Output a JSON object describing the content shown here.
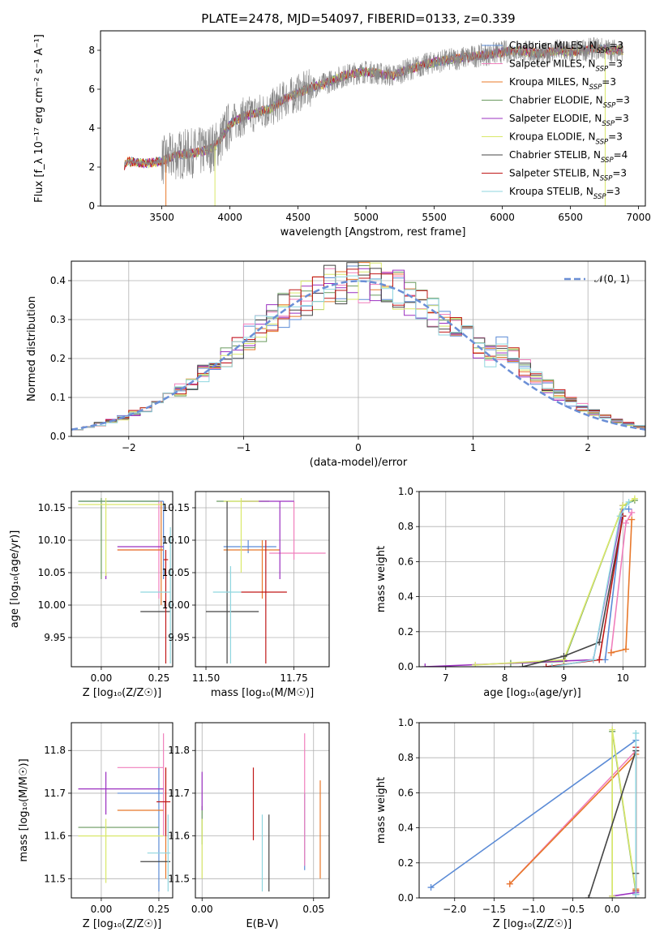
{
  "title": "PLATE=2478, MJD=54097, FIBERID=0133, z=0.339",
  "colors": {
    "chabrier_miles": "#5b8bd6",
    "salpeter_miles": "#f07fbc",
    "kroupa_miles": "#e8782a",
    "chabrier_elodie": "#6a9a5f",
    "salpeter_elodie": "#9b30c0",
    "kroupa_elodie": "#d9e86a",
    "chabrier_stelib": "#444444",
    "salpeter_stelib": "#c01818",
    "kroupa_stelib": "#8fd6df",
    "normal": "#6b8fd6",
    "spectrum": "#888888"
  },
  "chart_data": [
    {
      "id": "spectrum",
      "type": "line",
      "title": "PLATE=2478, MJD=54097, FIBERID=0133, z=0.339",
      "xlabel": "wavelength [Angstrom, rest frame]",
      "ylabel": "Flux [f_λ 10⁻¹⁷ erg cm⁻² s⁻¹ A⁻¹]",
      "xlim": [
        3050,
        7050
      ],
      "ylim": [
        0,
        9
      ],
      "xticks": [
        3500,
        4000,
        4500,
        5000,
        5500,
        6000,
        6500,
        7000
      ],
      "yticks": [
        0,
        2,
        4,
        6,
        8
      ],
      "grid": false,
      "legend_position": "top-right",
      "legend": [
        {
          "base": "Chabrier MILES, N",
          "sub": "SSP",
          "tail": "=3",
          "color_key": "chabrier_miles"
        },
        {
          "base": "Salpeter MILES, N",
          "sub": "SSP",
          "tail": "=3",
          "color_key": "salpeter_miles"
        },
        {
          "base": "Kroupa MILES, N",
          "sub": "SSP",
          "tail": "=3",
          "color_key": "kroupa_miles"
        },
        {
          "base": "Chabrier ELODIE, N",
          "sub": "SSP",
          "tail": "=3",
          "color_key": "chabrier_elodie"
        },
        {
          "base": "Salpeter ELODIE, N",
          "sub": "SSP",
          "tail": "=3",
          "color_key": "salpeter_elodie"
        },
        {
          "base": "Kroupa ELODIE, N",
          "sub": "SSP",
          "tail": "=3",
          "color_key": "kroupa_elodie"
        },
        {
          "base": "Chabrier STELIB, N",
          "sub": "SSP",
          "tail": "=4",
          "color_key": "chabrier_stelib"
        },
        {
          "base": "Salpeter STELIB, N",
          "sub": "SSP",
          "tail": "=3",
          "color_key": "salpeter_stelib"
        },
        {
          "base": "Kroupa STELIB, N",
          "sub": "SSP",
          "tail": "=3",
          "color_key": "kroupa_stelib"
        }
      ],
      "continuum": [
        [
          3220,
          0
        ],
        [
          3225,
          2.1
        ],
        [
          3240,
          2.3
        ],
        [
          3300,
          2.25
        ],
        [
          3400,
          2.2
        ],
        [
          3500,
          2.3
        ],
        [
          3600,
          2.6
        ],
        [
          3700,
          2.7
        ],
        [
          3800,
          2.8
        ],
        [
          3900,
          3.1
        ],
        [
          4000,
          4.2
        ],
        [
          4100,
          4.6
        ],
        [
          4200,
          4.8
        ],
        [
          4300,
          5.0
        ],
        [
          4400,
          5.5
        ],
        [
          4500,
          5.8
        ],
        [
          4600,
          6.1
        ],
        [
          4700,
          6.3
        ],
        [
          4800,
          6.6
        ],
        [
          4900,
          6.8
        ],
        [
          5000,
          6.9
        ],
        [
          5100,
          6.8
        ],
        [
          5200,
          6.7
        ],
        [
          5300,
          7.0
        ],
        [
          5400,
          7.2
        ],
        [
          5500,
          7.4
        ],
        [
          5600,
          7.5
        ],
        [
          5700,
          7.6
        ],
        [
          5800,
          7.7
        ],
        [
          5900,
          7.8
        ],
        [
          6000,
          7.9
        ],
        [
          6100,
          8.0
        ],
        [
          6200,
          7.9
        ],
        [
          6300,
          7.8
        ],
        [
          6400,
          8.0
        ],
        [
          6500,
          7.9
        ],
        [
          6600,
          8.0
        ],
        [
          6700,
          8.1
        ],
        [
          6800,
          8.0
        ],
        [
          6890,
          8.0
        ]
      ]
    },
    {
      "id": "residuals",
      "type": "line",
      "xlabel": "(data-model)/error",
      "ylabel": "Normed distribution",
      "xlim": [
        -2.5,
        2.5
      ],
      "ylim": [
        0,
        0.45
      ],
      "xticks": [
        -2,
        -1,
        0,
        1,
        2
      ],
      "yticks": [
        0.0,
        0.1,
        0.2,
        0.3,
        0.4
      ],
      "grid": true,
      "legend_position": "top-right",
      "legend": [
        {
          "label": "𝒩(0, 1)",
          "color_key": "normal",
          "dashed": true
        }
      ]
    },
    {
      "id": "age_vs_Z",
      "type": "scatter",
      "xlabel": "Z [log₁₀(Z/Z☉)]",
      "ylabel": "age  [log₁₀(age/yr)]",
      "xlim": [
        -0.13,
        0.31
      ],
      "ylim": [
        9.905,
        10.175
      ],
      "xticks": [
        0.0,
        0.25
      ],
      "yticks": [
        9.95,
        10.0,
        10.05,
        10.1,
        10.15
      ],
      "grid": true,
      "points": [
        {
          "c": "chabrier_miles",
          "x": 0.27,
          "xe": [
            -0.1,
            0.27
          ],
          "y": 10.16,
          "ye": [
            10.04,
            10.16
          ]
        },
        {
          "c": "salpeter_miles",
          "x": 0.25,
          "xe": [
            0.07,
            0.27
          ],
          "y": 10.085,
          "ye": [
            10.01,
            10.16
          ]
        },
        {
          "c": "kroupa_miles",
          "x": 0.26,
          "xe": [
            0.07,
            0.27
          ],
          "y": 10.085,
          "ye": [
            10.0,
            10.16
          ]
        },
        {
          "c": "chabrier_elodie",
          "x": 0.0,
          "xe": [
            -0.1,
            0.25
          ],
          "y": 10.16,
          "ye": [
            10.04,
            10.165
          ]
        },
        {
          "c": "salpeter_elodie",
          "x": 0.02,
          "xe": [
            0.07,
            0.27
          ],
          "y": 10.09,
          "ye": [
            10.04,
            10.05
          ]
        },
        {
          "c": "kroupa_elodie",
          "x": 0.02,
          "xe": [
            -0.1,
            0.27
          ],
          "y": 10.155,
          "ye": [
            10.045,
            10.165
          ]
        },
        {
          "c": "chabrier_stelib",
          "x": 0.23,
          "xe": [
            0.17,
            0.3
          ],
          "y": 9.99,
          "ye": [
            9.99,
            9.99
          ]
        },
        {
          "c": "salpeter_stelib",
          "x": 0.28,
          "xe": [
            0.27,
            0.29
          ],
          "y": 10.07,
          "ye": [
            9.91,
            10.085
          ]
        },
        {
          "c": "kroupa_stelib",
          "x": 0.3,
          "xe": [
            0.17,
            0.3
          ],
          "y": 10.02,
          "ye": [
            9.91,
            10.12
          ]
        }
      ]
    },
    {
      "id": "age_vs_mass",
      "type": "scatter",
      "xlabel": "mass [log₁₀(M/M☉)]",
      "ylim": [
        9.905,
        10.175
      ],
      "xlim": [
        11.47,
        11.85
      ],
      "xticks": [
        11.5,
        11.75
      ],
      "yticks": [
        9.95,
        10.0,
        10.05,
        10.1,
        10.15
      ],
      "grid": true,
      "points": [
        {
          "c": "chabrier_miles",
          "x": 11.62,
          "xe": [
            11.55,
            11.7
          ],
          "y": 10.09,
          "ye": [
            10.08,
            10.1
          ]
        },
        {
          "c": "salpeter_miles",
          "x": 11.75,
          "xe": [
            11.68,
            11.84
          ],
          "y": 10.08,
          "ye": [
            10.07,
            10.16
          ]
        },
        {
          "c": "kroupa_miles",
          "x": 11.66,
          "xe": [
            11.55,
            11.71
          ],
          "y": 10.085,
          "ye": [
            10.01,
            10.1
          ]
        },
        {
          "c": "chabrier_elodie",
          "x": 11.59,
          "xe": [
            11.53,
            11.68
          ],
          "y": 10.16,
          "ye": [
            10.16,
            10.16
          ]
        },
        {
          "c": "salpeter_elodie",
          "x": 11.71,
          "xe": [
            11.6,
            11.75
          ],
          "y": 10.16,
          "ye": [
            10.04,
            10.16
          ]
        },
        {
          "c": "kroupa_elodie",
          "x": 11.6,
          "xe": [
            11.55,
            11.65
          ],
          "y": 10.16,
          "ye": [
            10.05,
            10.165
          ]
        },
        {
          "c": "chabrier_stelib",
          "x": 11.56,
          "xe": [
            11.5,
            11.65
          ],
          "y": 9.99,
          "ye": [
            9.91,
            10.16
          ]
        },
        {
          "c": "salpeter_stelib",
          "x": 11.67,
          "xe": [
            11.6,
            11.73
          ],
          "y": 10.02,
          "ye": [
            9.91,
            10.1
          ]
        },
        {
          "c": "kroupa_stelib",
          "x": 11.57,
          "xe": [
            11.52,
            11.6
          ],
          "y": 10.02,
          "ye": [
            9.91,
            10.06
          ]
        }
      ]
    },
    {
      "id": "mass_weight_vs_age",
      "type": "line",
      "xlabel": "age  [log₁₀(age/yr)]",
      "ylabel": "mass weight",
      "xlim": [
        6.55,
        10.38
      ],
      "ylim": [
        0,
        1
      ],
      "xticks": [
        7,
        8,
        9,
        10
      ],
      "yticks": [
        0.0,
        0.2,
        0.4,
        0.6,
        0.8,
        1.0
      ],
      "grid": true,
      "series": [
        {
          "c": "chabrier_miles",
          "x": [
            9.7,
            10.0,
            10.1
          ],
          "y": [
            0.04,
            0.9,
            0.9
          ]
        },
        {
          "c": "salpeter_miles",
          "x": [
            9.8,
            10.05,
            10.15
          ],
          "y": [
            0.08,
            0.82,
            0.88
          ]
        },
        {
          "c": "kroupa_miles",
          "x": [
            9.8,
            10.05,
            10.15
          ],
          "y": [
            0.08,
            0.1,
            0.84
          ]
        },
        {
          "c": "chabrier_elodie",
          "x": [
            8.1,
            9.0,
            10.0,
            10.2
          ],
          "y": [
            0.02,
            0.03,
            0.92,
            0.95
          ]
        },
        {
          "c": "salpeter_elodie",
          "x": [
            6.65,
            9.5,
            10.0
          ],
          "y": [
            0.0,
            0.04,
            0.92
          ]
        },
        {
          "c": "kroupa_elodie",
          "x": [
            7.5,
            9.0,
            10.0,
            10.2
          ],
          "y": [
            0.01,
            0.04,
            0.92,
            0.96
          ]
        },
        {
          "c": "chabrier_stelib",
          "x": [
            8.3,
            9.0,
            9.6,
            10.0
          ],
          "y": [
            0.0,
            0.06,
            0.14,
            0.86
          ]
        },
        {
          "c": "salpeter_stelib",
          "x": [
            8.7,
            9.6,
            10.0
          ],
          "y": [
            0.0,
            0.04,
            0.86
          ]
        },
        {
          "c": "kroupa_stelib",
          "x": [
            8.8,
            9.5,
            9.95,
            10.1
          ],
          "y": [
            0.0,
            0.04,
            0.86,
            0.94
          ]
        }
      ]
    },
    {
      "id": "mass_vs_Z",
      "type": "scatter",
      "xlabel": "Z [log₁₀(Z/Z☉)]",
      "ylabel": "mass [log₁₀(M/M☉)]",
      "xlim": [
        -0.13,
        0.31
      ],
      "ylim": [
        11.455,
        11.865
      ],
      "xticks": [
        0.0,
        0.25
      ],
      "yticks": [
        11.5,
        11.6,
        11.7,
        11.8
      ],
      "grid": true,
      "points": [
        {
          "c": "chabrier_miles",
          "x": 0.25,
          "xe": [
            0.07,
            0.27
          ],
          "y": 11.7,
          "ye": [
            11.47,
            11.76
          ]
        },
        {
          "c": "salpeter_miles",
          "x": 0.27,
          "xe": [
            0.07,
            0.27
          ],
          "y": 11.76,
          "ye": [
            11.6,
            11.84
          ]
        },
        {
          "c": "kroupa_miles",
          "x": 0.28,
          "xe": [
            0.07,
            0.27
          ],
          "y": 11.66,
          "ye": [
            11.5,
            11.76
          ]
        },
        {
          "c": "chabrier_elodie",
          "x": 0.0,
          "xe": [
            -0.1,
            0.25
          ],
          "y": 11.62,
          "ye": [
            11.62,
            11.62
          ]
        },
        {
          "c": "salpeter_elodie",
          "x": 0.02,
          "xe": [
            -0.1,
            0.27
          ],
          "y": 11.71,
          "ye": [
            11.65,
            11.75
          ]
        },
        {
          "c": "kroupa_elodie",
          "x": 0.02,
          "xe": [
            -0.1,
            0.27
          ],
          "y": 11.6,
          "ye": [
            11.49,
            11.64
          ]
        },
        {
          "c": "chabrier_stelib",
          "x": 0.25,
          "xe": [
            0.17,
            0.3
          ],
          "y": 11.54,
          "ye": [
            11.54,
            11.54
          ]
        },
        {
          "c": "salpeter_stelib",
          "x": 0.28,
          "xe": [
            0.24,
            0.3
          ],
          "y": 11.68,
          "ye": [
            11.6,
            11.76
          ]
        },
        {
          "c": "kroupa_stelib",
          "x": 0.29,
          "xe": [
            0.2,
            0.3
          ],
          "y": 11.56,
          "ye": [
            11.47,
            11.65
          ]
        }
      ]
    },
    {
      "id": "mass_vs_ebv",
      "type": "scatter",
      "xlabel": "E(B-V)",
      "xlim": [
        -0.003,
        0.057
      ],
      "ylim": [
        11.455,
        11.865
      ],
      "xticks": [
        0.0,
        0.05
      ],
      "yticks": [
        11.5,
        11.6,
        11.7,
        11.8
      ],
      "grid": true,
      "points": [
        {
          "c": "chabrier_miles",
          "x": 0.046,
          "y": 11.65,
          "ye": [
            11.52,
            11.7
          ]
        },
        {
          "c": "salpeter_miles",
          "x": 0.046,
          "y": 11.7,
          "ye": [
            11.53,
            11.84
          ]
        },
        {
          "c": "kroupa_miles",
          "x": 0.053,
          "y": 11.6,
          "ye": [
            11.5,
            11.73
          ]
        },
        {
          "c": "chabrier_elodie",
          "x": 0.0,
          "y": 11.62,
          "ye": [
            11.58,
            11.67
          ]
        },
        {
          "c": "salpeter_elodie",
          "x": 0.0,
          "y": 11.7,
          "ye": [
            11.66,
            11.75
          ]
        },
        {
          "c": "kroupa_elodie",
          "x": 0.0,
          "y": 11.6,
          "ye": [
            11.5,
            11.64
          ]
        },
        {
          "c": "chabrier_stelib",
          "x": 0.03,
          "y": 11.6,
          "ye": [
            11.47,
            11.65
          ]
        },
        {
          "c": "salpeter_stelib",
          "x": 0.023,
          "y": 11.67,
          "ye": [
            11.59,
            11.76
          ]
        },
        {
          "c": "kroupa_stelib",
          "x": 0.027,
          "y": 11.6,
          "ye": [
            11.47,
            11.65
          ]
        }
      ]
    },
    {
      "id": "mass_weight_vs_Z",
      "type": "line",
      "xlabel": "Z [log₁₀(Z/Z☉)]",
      "ylabel": "mass weight",
      "xlim": [
        -2.45,
        0.42
      ],
      "ylim": [
        0,
        1
      ],
      "xticks": [
        -2.0,
        -1.5,
        -1.0,
        -0.5,
        0.0
      ],
      "yticks": [
        0.0,
        0.2,
        0.4,
        0.6,
        0.8,
        1.0
      ],
      "grid": true,
      "series": [
        {
          "c": "chabrier_miles",
          "x": [
            -2.3,
            0.3,
            0.3
          ],
          "y": [
            0.06,
            0.9,
            0.04
          ]
        },
        {
          "c": "salpeter_miles",
          "x": [
            -1.3,
            0.3,
            0.3
          ],
          "y": [
            0.08,
            0.84,
            0.04
          ]
        },
        {
          "c": "kroupa_miles",
          "x": [
            -1.3,
            0.3,
            0.3
          ],
          "y": [
            0.08,
            0.82,
            0.05
          ]
        },
        {
          "c": "chabrier_elodie",
          "x": [
            0.0,
            0.0,
            0.3
          ],
          "y": [
            0.0,
            0.95,
            0.03
          ]
        },
        {
          "c": "salpeter_elodie",
          "x": [
            0.0,
            0.3,
            0.3
          ],
          "y": [
            0.01,
            0.03,
            0.02
          ]
        },
        {
          "c": "kroupa_elodie",
          "x": [
            0.0,
            0.0,
            0.3
          ],
          "y": [
            0.01,
            0.96,
            0.04
          ]
        },
        {
          "c": "chabrier_stelib",
          "x": [
            -0.3,
            0.3,
            0.3,
            0.3
          ],
          "y": [
            0.0,
            0.84,
            0.14,
            0.02
          ]
        },
        {
          "c": "salpeter_stelib",
          "x": [
            0.3,
            0.3
          ],
          "y": [
            0.04,
            0.86
          ]
        },
        {
          "c": "kroupa_stelib",
          "x": [
            0.3,
            0.3
          ],
          "y": [
            0.02,
            0.94
          ]
        }
      ]
    }
  ]
}
